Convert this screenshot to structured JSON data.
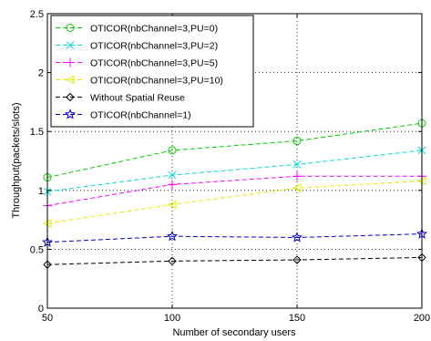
{
  "chart_data": {
    "type": "line",
    "title": "",
    "xlabel": "Number of secondary users",
    "ylabel": "Throughput(packets/slots)",
    "x": [
      50,
      100,
      150,
      200
    ],
    "xlim": [
      50,
      200
    ],
    "ylim": [
      0,
      2.5
    ],
    "xticks": [
      "50",
      "100",
      "150",
      "200"
    ],
    "yticks": [
      "0",
      "0.5",
      "1",
      "1.5",
      "2",
      "2.5"
    ],
    "grid": true,
    "legend_position": "top-left",
    "series": [
      {
        "name": "OTICOR(nbChannel=3,PU=0)",
        "values": [
          1.11,
          1.34,
          1.42,
          1.57
        ],
        "color": "#00cc00",
        "marker": "circle"
      },
      {
        "name": "OTICOR(nbChannel=3,PU=2)",
        "values": [
          0.99,
          1.13,
          1.22,
          1.34
        ],
        "color": "#00dddd",
        "marker": "x"
      },
      {
        "name": "OTICOR(nbChannel=3,PU=5)",
        "values": [
          0.87,
          1.05,
          1.12,
          1.12
        ],
        "color": "#ff00ff",
        "marker": "plus"
      },
      {
        "name": "OTICOR(nbChannel=3,PU=10)",
        "values": [
          0.72,
          0.88,
          1.02,
          1.08
        ],
        "color": "#e8e800",
        "marker": "triangle-left"
      },
      {
        "name": "Without Spatial Reuse",
        "values": [
          0.37,
          0.4,
          0.41,
          0.43
        ],
        "color": "#000000",
        "marker": "diamond"
      },
      {
        "name": "OTICOR(nbChannel=1)",
        "values": [
          0.56,
          0.61,
          0.6,
          0.63
        ],
        "color": "#0000cc",
        "marker": "star"
      }
    ]
  }
}
